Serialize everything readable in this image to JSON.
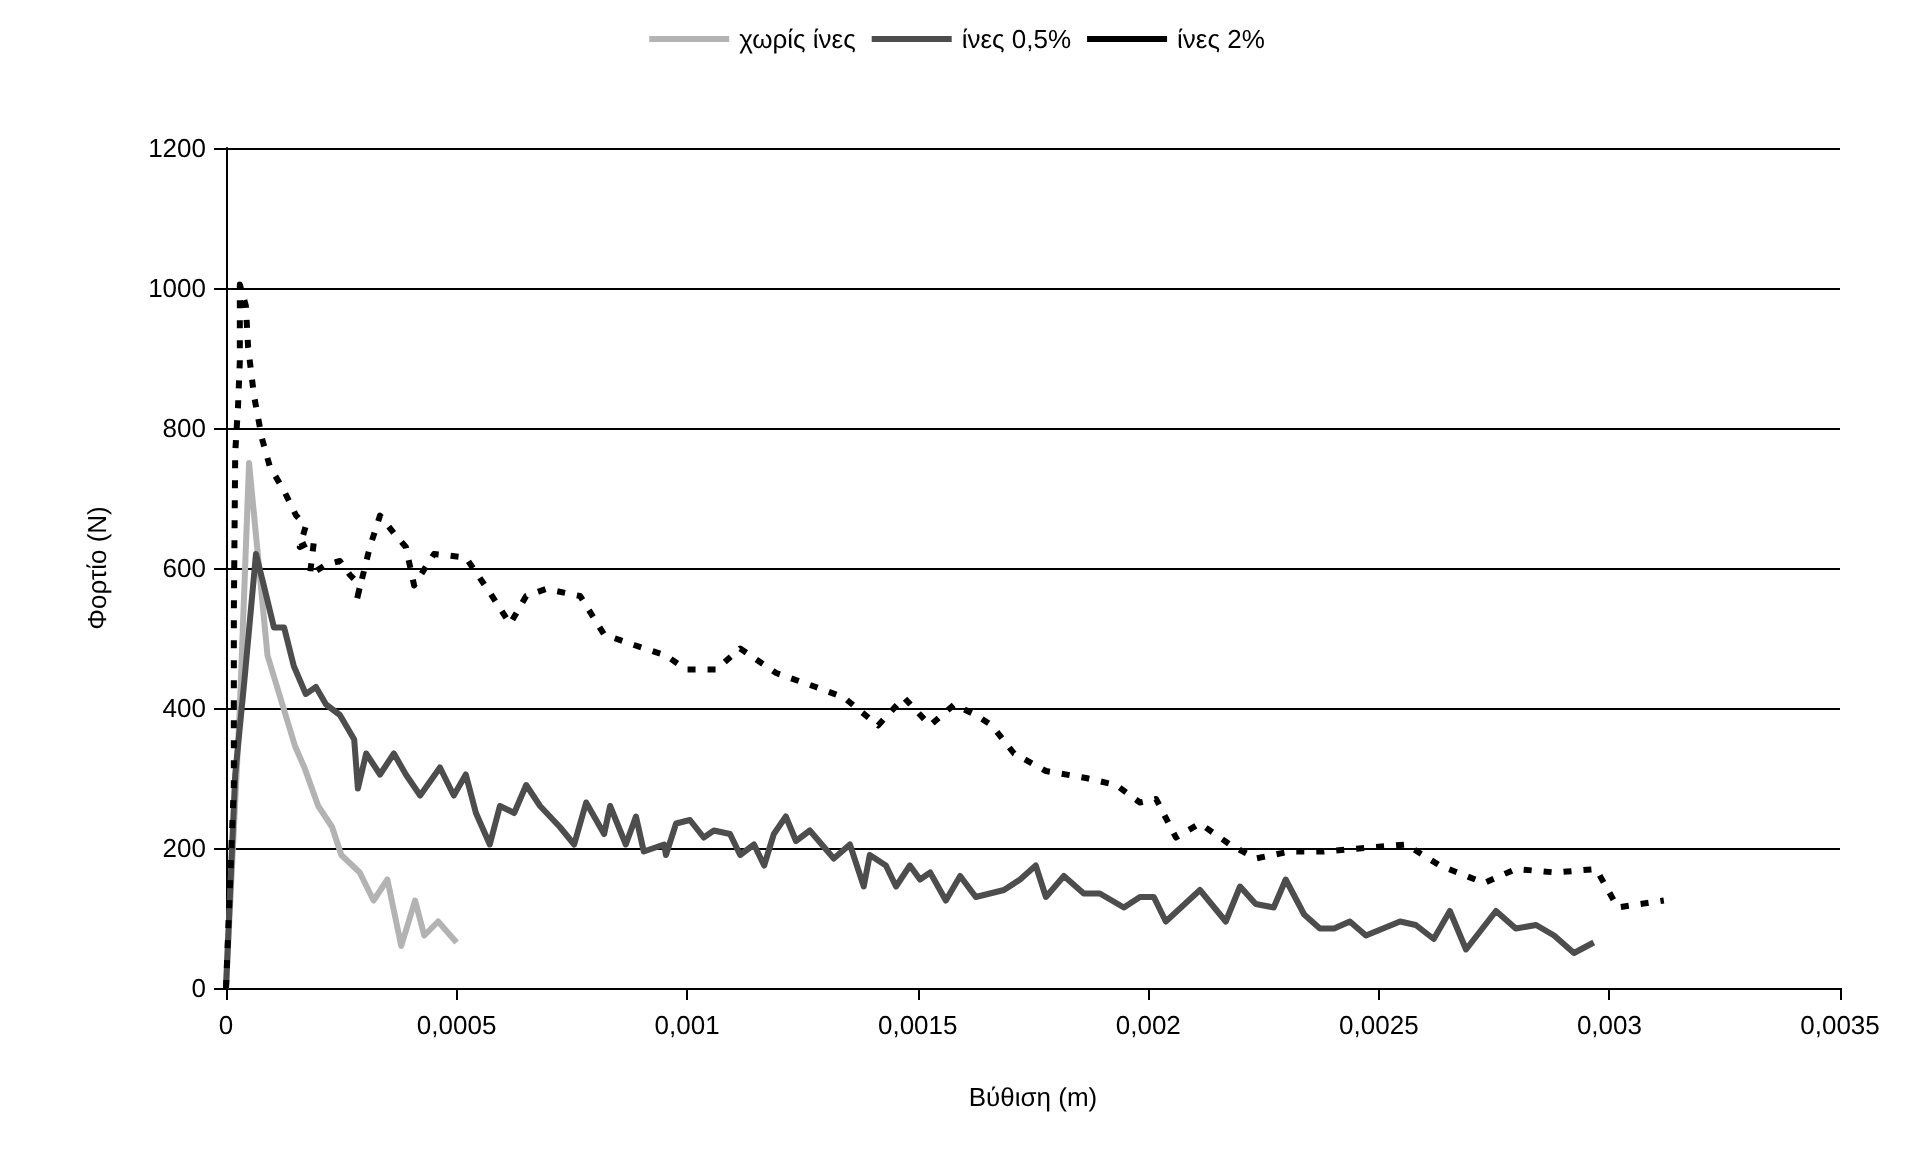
{
  "chart_data": {
    "type": "line",
    "xlabel": "Βύθιση (m)",
    "ylabel": "Φορτίο (N)",
    "xlim": [
      0,
      0.0035
    ],
    "ylim": [
      0,
      1200
    ],
    "xticks": [
      0,
      {
        "value": 0.0005,
        "label": "0,0005"
      },
      {
        "value": 0.001,
        "label": "0,001"
      },
      {
        "value": 0.0015,
        "label": "0,0015"
      },
      {
        "value": 0.002,
        "label": "0,002"
      },
      {
        "value": 0.0025,
        "label": "0,0025"
      },
      {
        "value": 0.003,
        "label": "0,003"
      },
      {
        "value": 0.0035,
        "label": "0,0035"
      }
    ],
    "yticks": [
      0,
      200,
      400,
      600,
      800,
      1000,
      1200
    ],
    "grid": "y",
    "legend": "top",
    "marker": "none",
    "series": [
      {
        "name": "χωρίς ίνες",
        "color": "#b3b3b3",
        "line_style": "solid",
        "x": [
          0,
          3e-05,
          5e-05,
          9e-05,
          0.00015,
          0.00017,
          0.0002,
          0.00023,
          0.00025,
          0.00029,
          0.00032,
          0.00035,
          0.00038,
          0.00041,
          0.00043,
          0.00046,
          0.0005
        ],
        "values": [
          0,
          400,
          750,
          475,
          345,
          315,
          260,
          230,
          190,
          165,
          125,
          155,
          60,
          125,
          75,
          95,
          65
        ]
      },
      {
        "name": "ίνες 0,5%",
        "color": "#4d4d4d",
        "line_style": "solid",
        "x": [
          0,
          2e-05,
          4e-05,
          6.5e-05,
          8.2e-05,
          0.000104,
          0.000126,
          0.000147,
          0.000173,
          0.000195,
          0.000217,
          0.000247,
          0.000278,
          0.000286,
          0.000304,
          0.000334,
          0.000364,
          0.00039,
          0.000421,
          0.000464,
          0.000494,
          0.00052,
          0.000542,
          0.000572,
          0.000594,
          0.000625,
          0.000651,
          0.000681,
          0.000724,
          0.000755,
          0.000781,
          0.00082,
          0.000833,
          0.000867,
          0.000889,
          0.000906,
          0.00095,
          0.000954,
          0.000976,
          0.001006,
          0.001036,
          0.001058,
          0.001093,
          0.001115,
          0.001145,
          0.001167,
          0.001188,
          0.001214,
          0.001236,
          0.001266,
          0.001318,
          0.001353,
          0.001383,
          0.001396,
          0.001431,
          0.001453,
          0.001483,
          0.001505,
          0.001527,
          0.001561,
          0.001592,
          0.001626,
          0.001687,
          0.001722,
          0.001756,
          0.001778,
          0.001817,
          0.00186,
          0.001895,
          0.001947,
          0.001982,
          0.002012,
          0.002038,
          0.002112,
          0.002168,
          0.002199,
          0.002233,
          0.002272,
          0.002298,
          0.002338,
          0.002372,
          0.002403,
          0.002437,
          0.002472,
          0.002546,
          0.00258,
          0.002619,
          0.002654,
          0.002689,
          0.002754,
          0.002797,
          0.002841,
          0.00288,
          0.002923,
          0.002966
        ],
        "values": [
          0,
          305,
          440,
          620,
          575,
          515,
          515,
          460,
          420,
          430,
          405,
          390,
          355,
          285,
          335,
          305,
          335,
          305,
          275,
          315,
          275,
          305,
          250,
          205,
          260,
          250,
          290,
          260,
          230,
          205,
          265,
          220,
          260,
          205,
          245,
          195,
          205,
          190,
          235,
          240,
          215,
          225,
          220,
          190,
          205,
          175,
          220,
          245,
          210,
          225,
          185,
          205,
          145,
          190,
          175,
          145,
          175,
          155,
          165,
          125,
          160,
          130,
          140,
          155,
          175,
          130,
          160,
          135,
          135,
          115,
          130,
          130,
          95,
          140,
          95,
          145,
          120,
          115,
          155,
          105,
          85,
          85,
          95,
          75,
          95,
          90,
          70,
          110,
          55,
          110,
          85,
          90,
          75,
          50,
          65
        ]
      },
      {
        "name": "ίνες 2%",
        "color": "#000000",
        "line_style": "dashed",
        "x": [
          0,
          1.7e-05,
          1.7e-05,
          2e-05,
          2.6e-05,
          3e-05,
          3e-05,
          4.3e-05,
          4.8e-05,
          6.1e-05,
          7.8e-05,
          9.5e-05,
          0.000126,
          0.000152,
          0.000173,
          0.00016,
          0.000191,
          0.000182,
          0.000217,
          0.000247,
          0.000269,
          0.000291,
          0.000282,
          0.000312,
          0.000334,
          0.000364,
          0.00039,
          0.000408,
          0.000451,
          0.00052,
          0.000572,
          0.000616,
          0.000651,
          0.000694,
          0.000768,
          0.00082,
          0.000885,
          0.000954,
          0.000998,
          0.001063,
          0.001115,
          0.001193,
          0.001279,
          0.00134,
          0.001414,
          0.00147,
          0.001527,
          0.001579,
          0.001626,
          0.001661,
          0.001709,
          0.001778,
          0.001865,
          0.00193,
          0.001982,
          0.002017,
          0.00206,
          0.002112,
          0.002177,
          0.002233,
          0.002307,
          0.002381,
          0.002468,
          0.002559,
          0.002632,
          0.002728,
          0.002797,
          0.002884,
          0.002971,
          0.003018,
          0.003118
        ],
        "values": [
          0,
          290,
          535,
          765,
          830,
          895,
          1005,
          975,
          915,
          845,
          785,
          745,
          710,
          675,
          660,
          630,
          640,
          590,
          605,
          610,
          590,
          575,
          550,
          630,
          675,
          650,
          630,
          575,
          620,
          615,
          565,
          520,
          560,
          570,
          560,
          505,
          490,
          475,
          455,
          455,
          485,
          450,
          430,
          415,
          375,
          415,
          375,
          405,
          390,
          375,
          335,
          310,
          300,
          290,
          265,
          270,
          215,
          235,
          205,
          185,
          195,
          195,
          200,
          205,
          175,
          150,
          170,
          165,
          170,
          115,
          125
        ]
      }
    ]
  }
}
